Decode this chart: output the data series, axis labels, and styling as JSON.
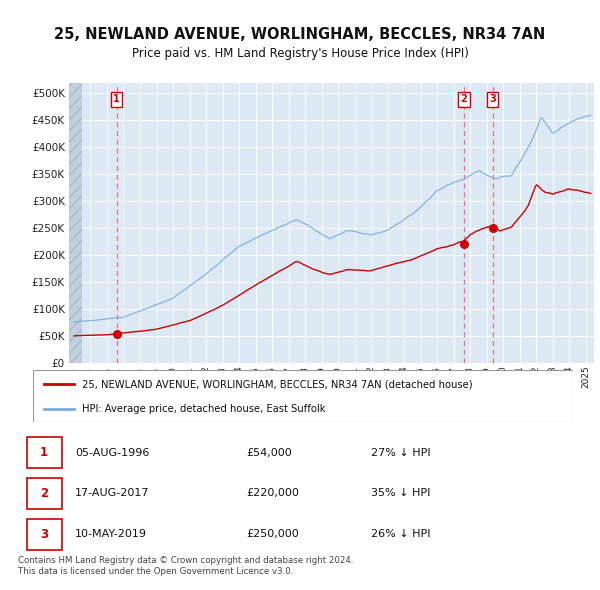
{
  "title": "25, NEWLAND AVENUE, WORLINGHAM, BECCLES, NR34 7AN",
  "subtitle": "Price paid vs. HM Land Registry's House Price Index (HPI)",
  "plot_bg_color": "#dce9f5",
  "hatch_color": "#c0d0e0",
  "grid_color": "#ffffff",
  "red_line_color": "#cc0000",
  "blue_line_color": "#7aade0",
  "vline_color": "#ff5555",
  "legend_label_red": "25, NEWLAND AVENUE, WORLINGHAM, BECCLES, NR34 7AN (detached house)",
  "legend_label_blue": "HPI: Average price, detached house, East Suffolk",
  "footer": "Contains HM Land Registry data © Crown copyright and database right 2024.\nThis data is licensed under the Open Government Licence v3.0.",
  "sales": [
    {
      "num": 1,
      "date": "05-AUG-1996",
      "price": 54000,
      "hpi_pct": "27% ↓ HPI",
      "year": 1996.58
    },
    {
      "num": 2,
      "date": "17-AUG-2017",
      "price": 220000,
      "hpi_pct": "35% ↓ HPI",
      "year": 2017.62
    },
    {
      "num": 3,
      "date": "10-MAY-2019",
      "price": 250000,
      "hpi_pct": "26% ↓ HPI",
      "year": 2019.36
    }
  ],
  "ylim": [
    0,
    520000
  ],
  "yticks": [
    0,
    50000,
    100000,
    150000,
    200000,
    250000,
    300000,
    350000,
    400000,
    450000,
    500000
  ],
  "xlim_start": 1993.7,
  "xlim_end": 2025.5
}
